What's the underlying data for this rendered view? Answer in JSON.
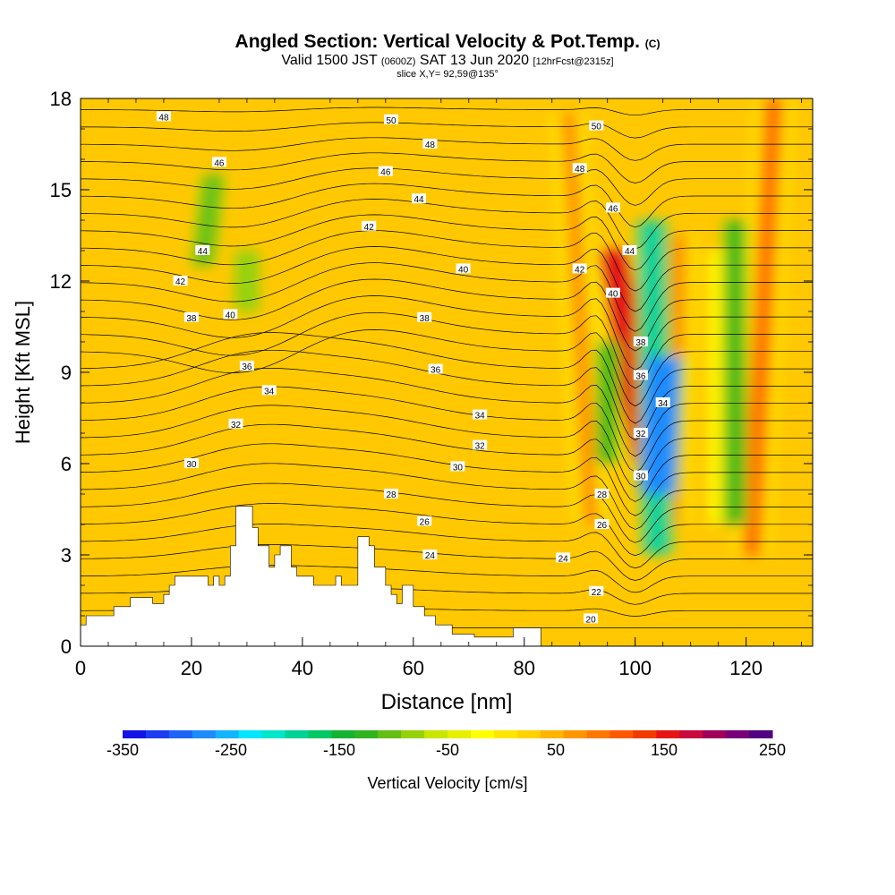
{
  "title": {
    "main": "Angled Section: Vertical Velocity & Pot.Temp.",
    "copyright": "(C)",
    "valid_prefix": "Valid 1500 JST",
    "valid_z": "(0600Z)",
    "valid_date": "SAT 13 Jun 2020",
    "forecast": "[12hrFcst@2315z]",
    "slice": "slice X,Y= 92,59@135°"
  },
  "chart_data": {
    "type": "heatmap",
    "xlabel": "Distance [nm]",
    "ylabel": "Height [Kft MSL]",
    "xlim": [
      0,
      132
    ],
    "ylim": [
      0,
      18
    ],
    "x_ticks": [
      "0",
      "20",
      "40",
      "60",
      "80",
      "100",
      "120"
    ],
    "y_ticks": [
      "0",
      "3",
      "6",
      "9",
      "12",
      "15",
      "18"
    ],
    "colorbar": {
      "label": "Vertical Velocity [cm/s]",
      "tick_labels": [
        "-350",
        "-250",
        "-150",
        "-50",
        "50",
        "150",
        "250"
      ],
      "min": -350,
      "max": 250,
      "step": 25,
      "colors": [
        "#1414e6",
        "#1c3cf0",
        "#1e64f8",
        "#1e8cff",
        "#14b4ff",
        "#00e6ff",
        "#00e6c8",
        "#00d296",
        "#00c864",
        "#14b432",
        "#32b41e",
        "#64be14",
        "#96d20a",
        "#c8e600",
        "#e6f000",
        "#ffff00",
        "#ffe600",
        "#ffd200",
        "#ffb400",
        "#ff9600",
        "#ff7800",
        "#ff5a00",
        "#f03c00",
        "#e61414",
        "#c80a3c",
        "#a0005a",
        "#780078",
        "#500080"
      ]
    },
    "terrain_kft": [
      [
        0,
        0.7
      ],
      [
        1,
        0.7
      ],
      [
        1,
        1
      ],
      [
        6,
        1
      ],
      [
        6,
        1.3
      ],
      [
        9,
        1.3
      ],
      [
        9,
        1.6
      ],
      [
        13,
        1.6
      ],
      [
        13,
        1.4
      ],
      [
        15,
        1.4
      ],
      [
        15,
        1.7
      ],
      [
        16,
        1.7
      ],
      [
        16,
        2
      ],
      [
        17,
        2
      ],
      [
        17,
        2.3
      ],
      [
        23,
        2.3
      ],
      [
        23,
        2
      ],
      [
        24,
        2
      ],
      [
        24,
        2.3
      ],
      [
        25,
        2.3
      ],
      [
        25,
        2
      ],
      [
        26,
        2
      ],
      [
        26,
        2.3
      ],
      [
        27,
        2.3
      ],
      [
        27,
        3.3
      ],
      [
        28,
        3.3
      ],
      [
        28,
        4.6
      ],
      [
        31,
        4.6
      ],
      [
        31,
        3.9
      ],
      [
        32,
        3.9
      ],
      [
        32,
        3.3
      ],
      [
        34,
        3.3
      ],
      [
        34,
        2.6
      ],
      [
        35,
        2.6
      ],
      [
        35,
        3
      ],
      [
        36,
        3
      ],
      [
        36,
        3.3
      ],
      [
        38,
        3.3
      ],
      [
        38,
        2.6
      ],
      [
        39,
        2.6
      ],
      [
        39,
        2.3
      ],
      [
        42,
        2.3
      ],
      [
        42,
        2
      ],
      [
        46,
        2
      ],
      [
        46,
        2.3
      ],
      [
        47,
        2.3
      ],
      [
        47,
        2
      ],
      [
        50,
        2
      ],
      [
        50,
        3.6
      ],
      [
        52,
        3.6
      ],
      [
        52,
        3.3
      ],
      [
        53,
        3.3
      ],
      [
        53,
        2.6
      ],
      [
        55,
        2.6
      ],
      [
        55,
        2
      ],
      [
        56,
        2
      ],
      [
        56,
        1.7
      ],
      [
        57,
        1.7
      ],
      [
        57,
        1.4
      ],
      [
        58,
        1.4
      ],
      [
        58,
        2
      ],
      [
        60,
        2
      ],
      [
        60,
        1.3
      ],
      [
        62,
        1.3
      ],
      [
        62,
        1
      ],
      [
        64,
        1
      ],
      [
        64,
        0.7
      ],
      [
        67,
        0.7
      ],
      [
        67,
        0.4
      ],
      [
        71,
        0.4
      ],
      [
        71,
        0.3
      ],
      [
        78,
        0.3
      ],
      [
        78,
        0.6
      ],
      [
        83,
        0.6
      ],
      [
        83,
        0
      ]
    ],
    "updraft_bands": [
      {
        "x_bottom": 92,
        "x_top": 88,
        "y_bottom": 4,
        "y_top": 17.5,
        "value": 125
      },
      {
        "x_bottom": 102,
        "x_top": 96,
        "y_bottom": 6,
        "y_top": 13,
        "value": 225
      },
      {
        "x_bottom": 107,
        "x_top": 108,
        "y_bottom": 4,
        "y_top": 13.5,
        "value": 125
      },
      {
        "x_bottom": 121,
        "x_top": 125,
        "y_bottom": 3,
        "y_top": 18,
        "value": 150
      },
      {
        "x_bottom": 116,
        "x_top": 116,
        "y_bottom": 4,
        "y_top": 13,
        "value": 60
      }
    ],
    "downdraft_bands": [
      {
        "x_bottom": 104,
        "x_top": 103,
        "y_bottom": 3,
        "y_top": 14,
        "value": -175
      },
      {
        "x_bottom": 104,
        "x_top": 105,
        "y_bottom": 5,
        "y_top": 9.5,
        "value": -275
      },
      {
        "x_bottom": 95,
        "x_top": 95,
        "y_bottom": 6,
        "y_top": 10,
        "value": -100
      },
      {
        "x_bottom": 118,
        "x_top": 118,
        "y_bottom": 4,
        "y_top": 14,
        "value": -100
      },
      {
        "x_bottom": 22,
        "x_top": 24,
        "y_bottom": 12.5,
        "y_top": 15.5,
        "value": -60
      },
      {
        "x_bottom": 30,
        "x_top": 30,
        "y_bottom": 11,
        "y_top": 13,
        "value": -50
      }
    ],
    "isentropes_c": [
      20,
      21,
      22,
      23,
      24,
      25,
      26,
      27,
      28,
      29,
      30,
      31,
      32,
      33,
      34,
      35,
      36,
      37,
      38,
      39,
      40,
      41,
      42,
      43,
      44,
      45,
      46,
      47,
      48,
      49,
      50,
      51
    ],
    "isentrope_labels": [
      {
        "text": "20",
        "x": 92,
        "y": 0.9
      },
      {
        "text": "22",
        "x": 93,
        "y": 1.8
      },
      {
        "text": "24",
        "x": 63,
        "y": 3.0
      },
      {
        "text": "24",
        "x": 87,
        "y": 2.9
      },
      {
        "text": "26",
        "x": 62,
        "y": 4.1
      },
      {
        "text": "26",
        "x": 94,
        "y": 4.0
      },
      {
        "text": "28",
        "x": 56,
        "y": 5.0
      },
      {
        "text": "28",
        "x": 94,
        "y": 5.0
      },
      {
        "text": "30",
        "x": 20,
        "y": 6.0
      },
      {
        "text": "30",
        "x": 68,
        "y": 5.9
      },
      {
        "text": "30",
        "x": 101,
        "y": 5.6
      },
      {
        "text": "32",
        "x": 28,
        "y": 7.3
      },
      {
        "text": "32",
        "x": 72,
        "y": 6.6
      },
      {
        "text": "32",
        "x": 101,
        "y": 7.0
      },
      {
        "text": "34",
        "x": 34,
        "y": 8.4
      },
      {
        "text": "34",
        "x": 72,
        "y": 7.6
      },
      {
        "text": "34",
        "x": 105,
        "y": 8.0
      },
      {
        "text": "36",
        "x": 30,
        "y": 9.2
      },
      {
        "text": "36",
        "x": 64,
        "y": 9.1
      },
      {
        "text": "36",
        "x": 101,
        "y": 8.9
      },
      {
        "text": "38",
        "x": 20,
        "y": 10.8
      },
      {
        "text": "38",
        "x": 62,
        "y": 10.8
      },
      {
        "text": "38",
        "x": 101,
        "y": 10.0
      },
      {
        "text": "40",
        "x": 27,
        "y": 10.9
      },
      {
        "text": "40",
        "x": 69,
        "y": 12.4
      },
      {
        "text": "40",
        "x": 96,
        "y": 11.6
      },
      {
        "text": "42",
        "x": 18,
        "y": 12.0
      },
      {
        "text": "42",
        "x": 52,
        "y": 13.8
      },
      {
        "text": "42",
        "x": 90,
        "y": 12.4
      },
      {
        "text": "44",
        "x": 22,
        "y": 13.0
      },
      {
        "text": "44",
        "x": 61,
        "y": 14.7
      },
      {
        "text": "44",
        "x": 99,
        "y": 13.0
      },
      {
        "text": "46",
        "x": 25,
        "y": 15.9
      },
      {
        "text": "46",
        "x": 55,
        "y": 15.6
      },
      {
        "text": "46",
        "x": 96,
        "y": 14.4
      },
      {
        "text": "48",
        "x": 15,
        "y": 17.4
      },
      {
        "text": "48",
        "x": 63,
        "y": 16.5
      },
      {
        "text": "48",
        "x": 90,
        "y": 15.7
      },
      {
        "text": "50",
        "x": 56,
        "y": 17.3
      },
      {
        "text": "50",
        "x": 93,
        "y": 17.1
      }
    ]
  }
}
